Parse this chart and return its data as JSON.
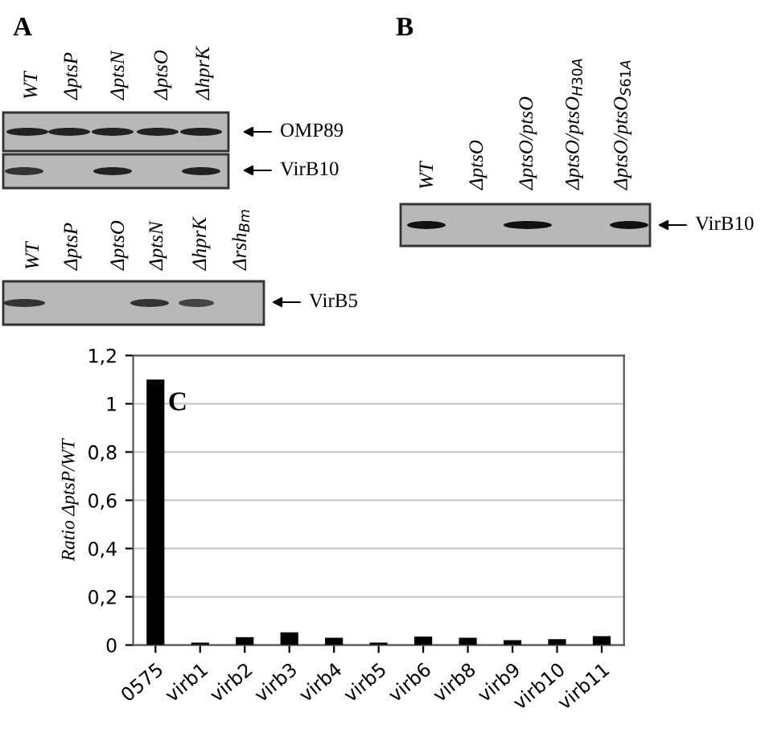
{
  "chart_data": {
    "type": "bar",
    "ylabel": "Ratio ΔptsP/WT",
    "categories": [
      "0575",
      "virb1",
      "virb2",
      "virb3",
      "virb4",
      "virb5",
      "virb6",
      "virb8",
      "virb9",
      "virb10",
      "virb11"
    ],
    "values": [
      1.1,
      0.01,
      0.033,
      0.053,
      0.03,
      0.01,
      0.035,
      0.03,
      0.02,
      0.024,
      0.037
    ],
    "color": "#000000",
    "ylim": [
      0,
      1.2
    ],
    "yticks": [
      0,
      {
        "value": 0.2,
        "label": "0,2"
      },
      {
        "value": 0.4,
        "label": "0,4"
      },
      {
        "value": 0.6,
        "label": "0,6"
      },
      {
        "value": 0.8,
        "label": "0,8"
      },
      1,
      {
        "value": 1.2,
        "label": "1,2"
      }
    ],
    "grid": "y",
    "annotations": [
      "A",
      "WT",
      "ΔptsP",
      "ΔptsN",
      "ΔptsO",
      "ΔhprK",
      "OMP89",
      "VirB10",
      "WT",
      "ΔptsP",
      "ΔptsO",
      "ΔptsN",
      "ΔhprK",
      "Δrsh$_{Bm}$",
      "VirB5",
      "B",
      "WT",
      "ΔptsO",
      "ΔptsO/ptsO",
      "ΔptsO/ptsO$_{H30A}$",
      "ΔptsO/ptsO$_{S61A}$",
      "VirB10",
      "C"
    ]
  }
}
